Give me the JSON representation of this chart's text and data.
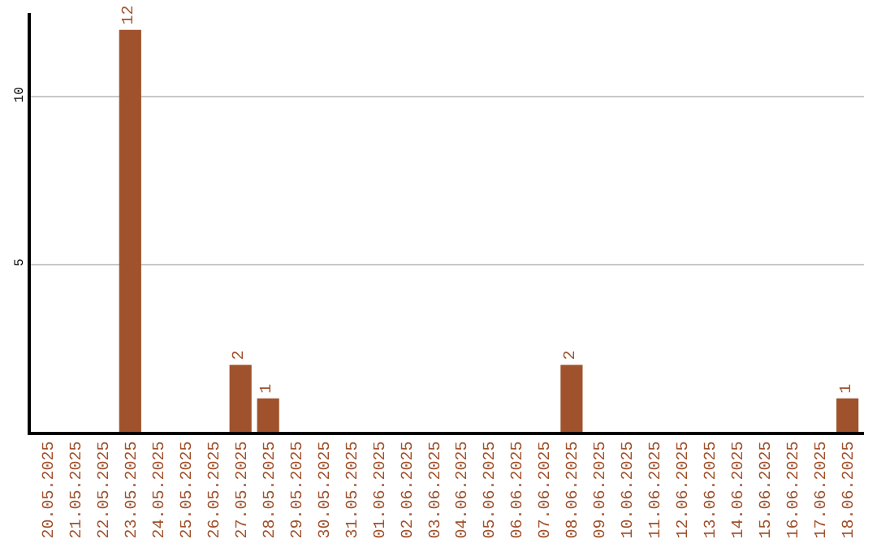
{
  "chart_data": {
    "type": "bar",
    "categories": [
      "20.05.2025",
      "21.05.2025",
      "22.05.2025",
      "23.05.2025",
      "24.05.2025",
      "25.05.2025",
      "26.05.2025",
      "27.05.2025",
      "28.05.2025",
      "29.05.2025",
      "30.05.2025",
      "31.05.2025",
      "01.06.2025",
      "02.06.2025",
      "03.06.2025",
      "04.06.2025",
      "05.06.2025",
      "06.06.2025",
      "07.06.2025",
      "08.06.2025",
      "09.06.2025",
      "10.06.2025",
      "11.06.2025",
      "12.06.2025",
      "13.06.2025",
      "14.06.2025",
      "15.06.2025",
      "16.06.2025",
      "17.06.2025",
      "18.06.2025"
    ],
    "values": [
      0,
      0,
      0,
      12,
      0,
      0,
      0,
      2,
      1,
      0,
      0,
      0,
      0,
      0,
      0,
      0,
      0,
      0,
      0,
      2,
      0,
      0,
      0,
      0,
      0,
      0,
      0,
      0,
      0,
      1
    ],
    "value_labels": [
      null,
      null,
      null,
      "12",
      null,
      null,
      null,
      "2",
      "1",
      null,
      null,
      null,
      null,
      null,
      null,
      null,
      null,
      null,
      null,
      "2",
      null,
      null,
      null,
      null,
      null,
      null,
      null,
      null,
      null,
      "1"
    ],
    "color": "#a0522d",
    "ylim": [
      0,
      12.5
    ],
    "yticks": [
      5,
      10
    ],
    "grid": "y"
  }
}
